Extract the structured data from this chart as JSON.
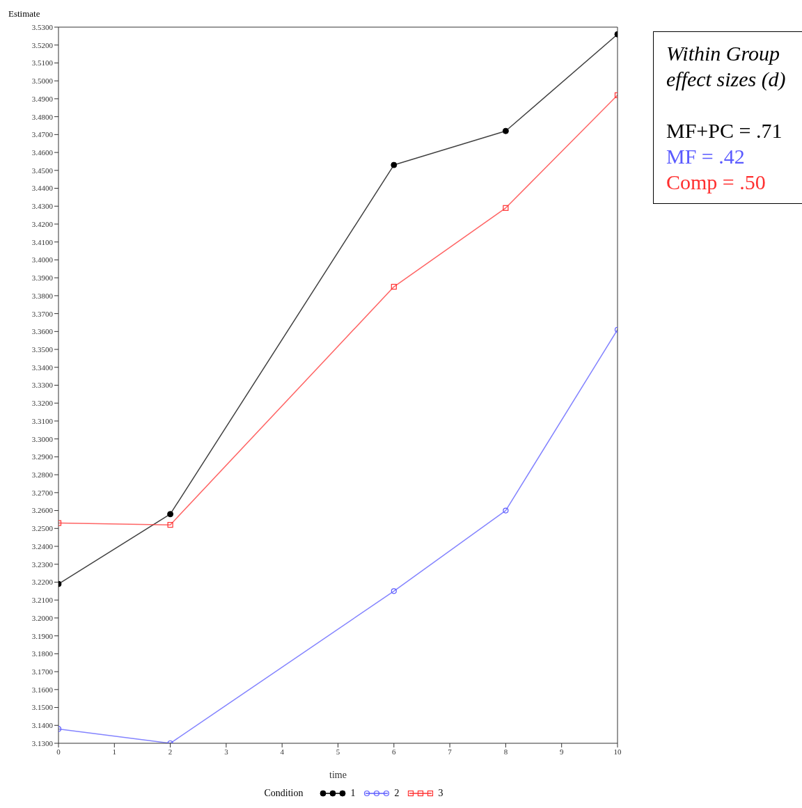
{
  "chart_data": {
    "type": "line",
    "xlabel": "time",
    "ylabel": "Estimate",
    "legend_title": "Condition",
    "legend": "bottom",
    "grid": false,
    "x": [
      0,
      2,
      6,
      8,
      10
    ],
    "series": [
      {
        "name": "1",
        "color": "#000000",
        "marker": "circle",
        "values": [
          3.219,
          3.258,
          3.453,
          3.472,
          3.526
        ]
      },
      {
        "name": "2",
        "color": "#5a5aff",
        "marker": "circle-open",
        "values": [
          3.138,
          3.13,
          3.215,
          3.26,
          3.361
        ]
      },
      {
        "name": "3",
        "color": "#ff3030",
        "marker": "square",
        "values": [
          3.253,
          3.252,
          3.385,
          3.429,
          3.492
        ]
      }
    ],
    "xlim": [
      0,
      10
    ],
    "xticks": [
      0,
      1,
      2,
      3,
      4,
      5,
      6,
      7,
      8,
      9,
      10
    ],
    "ylim": [
      3.13,
      3.53
    ],
    "yticks": [
      {
        "value": 3.13,
        "label": "3.1300"
      },
      {
        "value": 3.14,
        "label": "3.1400"
      },
      {
        "value": 3.15,
        "label": "3.1500"
      },
      {
        "value": 3.16,
        "label": "3.1600"
      },
      {
        "value": 3.17,
        "label": "3.1700"
      },
      {
        "value": 3.18,
        "label": "3.1800"
      },
      {
        "value": 3.19,
        "label": "3.1900"
      },
      {
        "value": 3.2,
        "label": "3.2000"
      },
      {
        "value": 3.21,
        "label": "3.2100"
      },
      {
        "value": 3.22,
        "label": "3.2200"
      },
      {
        "value": 3.23,
        "label": "3.2300"
      },
      {
        "value": 3.24,
        "label": "3.2400"
      },
      {
        "value": 3.25,
        "label": "3.2500"
      },
      {
        "value": 3.26,
        "label": "3.2600"
      },
      {
        "value": 3.27,
        "label": "3.2700"
      },
      {
        "value": 3.28,
        "label": "3.2800"
      },
      {
        "value": 3.29,
        "label": "3.2900"
      },
      {
        "value": 3.3,
        "label": "3.3000"
      },
      {
        "value": 3.31,
        "label": "3.3100"
      },
      {
        "value": 3.32,
        "label": "3.3200"
      },
      {
        "value": 3.33,
        "label": "3.3300"
      },
      {
        "value": 3.34,
        "label": "3.3400"
      },
      {
        "value": 3.35,
        "label": "3.3500"
      },
      {
        "value": 3.36,
        "label": "3.3600"
      },
      {
        "value": 3.37,
        "label": "3.3700"
      },
      {
        "value": 3.38,
        "label": "3.3800"
      },
      {
        "value": 3.39,
        "label": "3.3900"
      },
      {
        "value": 3.4,
        "label": "3.4000"
      },
      {
        "value": 3.41,
        "label": "3.4100"
      },
      {
        "value": 3.42,
        "label": "3.4200"
      },
      {
        "value": 3.43,
        "label": "3.4300"
      },
      {
        "value": 3.44,
        "label": "3.4400"
      },
      {
        "value": 3.45,
        "label": "3.4500"
      },
      {
        "value": 3.46,
        "label": "3.4600"
      },
      {
        "value": 3.47,
        "label": "3.4700"
      },
      {
        "value": 3.48,
        "label": "3.4800"
      },
      {
        "value": 3.49,
        "label": "3.4900"
      },
      {
        "value": 3.5,
        "label": "3.5000"
      },
      {
        "value": 3.51,
        "label": "3.5100"
      },
      {
        "value": 3.52,
        "label": "3.5200"
      },
      {
        "value": 3.53,
        "label": "3.5300"
      }
    ],
    "annotations": [
      "Within Group effect sizes (d)",
      "MF+PC = .71",
      "MF = .42",
      "Comp = .50"
    ]
  }
}
